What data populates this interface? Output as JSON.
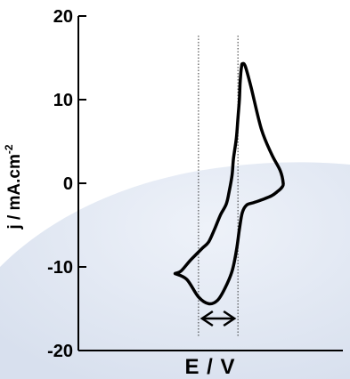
{
  "chart_data": {
    "type": "line",
    "title": "",
    "xlabel": "E / V",
    "ylabel": "j / mA.cm",
    "ylabel_superscript": "-2",
    "ylim": [
      -20,
      20
    ],
    "yticks": [
      "20",
      "10",
      "0",
      "-10",
      "-20"
    ],
    "ytick_values": [
      20,
      10,
      0,
      -10,
      -20
    ],
    "grid": false,
    "legend": "none",
    "xlim": [
      0,
      1
    ],
    "series": [
      {
        "color": "#000000",
        "x": [
          0.26,
          0.3,
          0.36,
          0.41,
          0.45,
          0.49,
          0.53,
          0.57,
          0.61,
          0.63,
          0.65,
          0.66,
          0.68,
          0.69,
          0.7,
          0.705,
          0.71,
          0.715,
          0.72,
          0.74,
          0.78,
          0.85,
          0.92,
          0.98,
          1.0,
          0.99,
          0.96,
          0.92,
          0.85,
          0.8,
          0.75,
          0.72,
          0.7,
          0.68,
          0.65,
          0.6,
          0.55,
          0.49,
          0.42,
          0.34,
          0.26
        ],
        "y": [
          -10.8,
          -10.5,
          -9.3,
          -8.4,
          -7.7,
          -7.0,
          -5.5,
          -3.8,
          -2.5,
          -1.0,
          1.0,
          3.0,
          5.5,
          7.8,
          10.0,
          12.0,
          13.2,
          14.0,
          14.3,
          14.0,
          11.5,
          6.5,
          3.5,
          1.5,
          0.0,
          -0.5,
          -1.0,
          -1.5,
          -2.0,
          -2.3,
          -2.6,
          -3.5,
          -5.5,
          -8.0,
          -10.5,
          -12.6,
          -14.0,
          -14.4,
          -13.6,
          -11.5,
          -10.8
        ]
      }
    ],
    "annotations": {
      "peak_lines_x": [
        0.42,
        0.69
      ],
      "arrow": "double-headed horizontal arrow between the two dotted lines"
    }
  },
  "colors": {
    "background": "#ffffff",
    "shade": "#dfe5f1",
    "line": "#000000"
  }
}
